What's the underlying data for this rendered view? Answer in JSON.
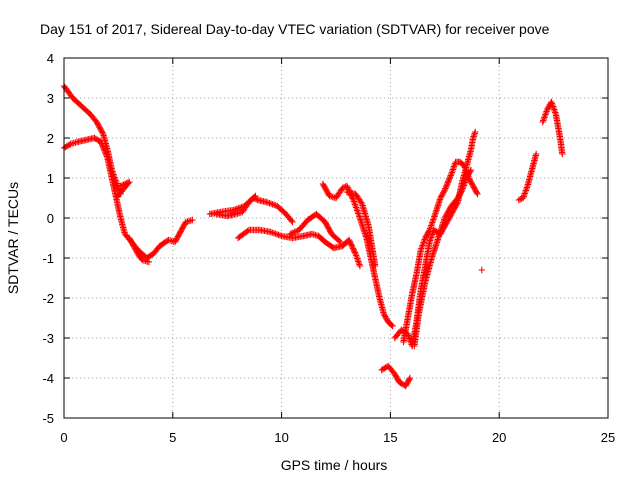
{
  "chart_data": {
    "type": "scatter",
    "title": "Day 151 of 2017, Sidereal Day-to-day VTEC variation (SDTVAR) for receiver pove",
    "xlabel": "GPS time / hours",
    "ylabel": "SDTVAR / TECUs",
    "xlim": [
      0,
      25
    ],
    "ylim": [
      -5,
      4
    ],
    "xticks": [
      "0",
      "5",
      "10",
      "15",
      "20",
      "25"
    ],
    "yticks": [
      "4",
      "3",
      "2",
      "1",
      "0",
      "-1",
      "-2",
      "-3",
      "-4",
      "-5"
    ],
    "grid": true,
    "legend": "none",
    "marker": "+",
    "color": "#ff0000",
    "segments": [
      {
        "points": [
          [
            0.0,
            3.3
          ],
          [
            0.4,
            3.0
          ],
          [
            0.8,
            2.8
          ],
          [
            1.2,
            2.6
          ],
          [
            1.5,
            2.4
          ],
          [
            1.8,
            2.1
          ],
          [
            2.0,
            1.7
          ],
          [
            2.2,
            1.2
          ],
          [
            2.4,
            0.9
          ],
          [
            2.6,
            0.6
          ]
        ]
      },
      {
        "points": [
          [
            0.0,
            1.75
          ],
          [
            0.3,
            1.85
          ],
          [
            0.6,
            1.9
          ],
          [
            1.0,
            1.95
          ],
          [
            1.4,
            2.0
          ],
          [
            1.7,
            1.9
          ],
          [
            2.0,
            1.5
          ],
          [
            2.2,
            1.0
          ],
          [
            2.4,
            0.5
          ],
          [
            2.6,
            0.0
          ],
          [
            2.8,
            -0.4
          ],
          [
            3.1,
            -0.6
          ],
          [
            3.4,
            -0.8
          ],
          [
            3.8,
            -1.0
          ],
          [
            4.1,
            -0.9
          ],
          [
            4.4,
            -0.7
          ],
          [
            4.8,
            -0.55
          ],
          [
            5.1,
            -0.6
          ],
          [
            5.3,
            -0.4
          ],
          [
            5.6,
            -0.1
          ],
          [
            5.9,
            -0.05
          ]
        ]
      },
      {
        "points": [
          [
            2.4,
            0.5
          ],
          [
            2.7,
            0.7
          ],
          [
            3.0,
            0.9
          ],
          [
            2.8,
            0.85
          ],
          [
            2.6,
            0.8
          ]
        ]
      },
      {
        "points": [
          [
            3.0,
            -0.5
          ],
          [
            3.4,
            -0.9
          ],
          [
            3.6,
            -1.05
          ],
          [
            3.9,
            -1.1
          ]
        ]
      },
      {
        "points": [
          [
            6.7,
            0.1
          ],
          [
            7.2,
            0.15
          ],
          [
            7.8,
            0.2
          ],
          [
            8.3,
            0.3
          ],
          [
            8.7,
            0.5
          ],
          [
            8.9,
            0.45
          ],
          [
            9.3,
            0.4
          ],
          [
            9.8,
            0.3
          ],
          [
            10.2,
            0.1
          ],
          [
            10.5,
            -0.1
          ]
        ]
      },
      {
        "points": [
          [
            7.0,
            0.1
          ],
          [
            7.5,
            0.05
          ],
          [
            7.9,
            0.1
          ],
          [
            8.2,
            0.15
          ],
          [
            8.5,
            0.4
          ],
          [
            8.8,
            0.55
          ]
        ]
      },
      {
        "points": [
          [
            8.0,
            -0.5
          ],
          [
            8.5,
            -0.3
          ],
          [
            9.0,
            -0.3
          ],
          [
            9.5,
            -0.35
          ],
          [
            10.0,
            -0.45
          ],
          [
            10.5,
            -0.5
          ],
          [
            11.0,
            -0.45
          ],
          [
            11.4,
            -0.4
          ],
          [
            11.7,
            -0.45
          ],
          [
            12.0,
            -0.6
          ],
          [
            12.4,
            -0.75
          ],
          [
            12.8,
            -0.7
          ],
          [
            13.1,
            -0.55
          ],
          [
            13.4,
            -0.9
          ],
          [
            13.6,
            -1.2
          ]
        ]
      },
      {
        "points": [
          [
            10.4,
            -0.4
          ],
          [
            10.8,
            -0.3
          ],
          [
            11.2,
            -0.05
          ],
          [
            11.6,
            0.1
          ],
          [
            12.0,
            -0.1
          ],
          [
            12.3,
            -0.4
          ],
          [
            12.7,
            -0.6
          ]
        ]
      },
      {
        "points": [
          [
            11.9,
            0.85
          ],
          [
            12.2,
            0.55
          ],
          [
            12.5,
            0.5
          ],
          [
            12.8,
            0.75
          ],
          [
            13.0,
            0.8
          ],
          [
            13.3,
            0.45
          ],
          [
            13.6,
            0.0
          ],
          [
            13.9,
            -0.5
          ],
          [
            14.1,
            -1.0
          ],
          [
            14.3,
            -1.5
          ],
          [
            14.5,
            -2.0
          ],
          [
            14.7,
            -2.4
          ],
          [
            14.9,
            -2.6
          ],
          [
            15.1,
            -2.7
          ]
        ]
      },
      {
        "points": [
          [
            13.0,
            0.65
          ],
          [
            13.4,
            0.6
          ],
          [
            13.7,
            0.35
          ],
          [
            14.0,
            -0.2
          ],
          [
            14.3,
            -1.2
          ]
        ]
      },
      {
        "points": [
          [
            14.6,
            -3.8
          ],
          [
            14.9,
            -3.7
          ],
          [
            15.2,
            -3.9
          ],
          [
            15.4,
            -4.1
          ],
          [
            15.7,
            -4.2
          ],
          [
            15.9,
            -4.0
          ]
        ]
      },
      {
        "points": [
          [
            15.2,
            -3.0
          ],
          [
            15.5,
            -2.8
          ],
          [
            15.8,
            -2.9
          ],
          [
            16.0,
            -3.2
          ],
          [
            16.2,
            -2.6
          ],
          [
            16.4,
            -1.8
          ],
          [
            16.6,
            -1.2
          ],
          [
            16.8,
            -0.6
          ],
          [
            17.0,
            -0.3
          ],
          [
            17.3,
            -0.4
          ],
          [
            17.5,
            -0.2
          ],
          [
            17.8,
            0.1
          ],
          [
            18.1,
            0.4
          ],
          [
            18.3,
            0.9
          ],
          [
            18.5,
            1.3
          ],
          [
            18.7,
            1.7
          ],
          [
            18.8,
            2.0
          ],
          [
            18.9,
            2.15
          ]
        ]
      },
      {
        "points": [
          [
            15.6,
            -3.1
          ],
          [
            15.8,
            -2.5
          ],
          [
            16.0,
            -1.9
          ],
          [
            16.2,
            -1.4
          ],
          [
            16.4,
            -0.8
          ],
          [
            16.6,
            -0.5
          ],
          [
            16.8,
            -0.3
          ],
          [
            17.0,
            0.0
          ],
          [
            17.3,
            0.5
          ],
          [
            17.5,
            0.7
          ],
          [
            17.8,
            1.1
          ],
          [
            18.0,
            1.4
          ],
          [
            18.2,
            1.4
          ],
          [
            18.4,
            1.3
          ],
          [
            18.6,
            1.0
          ],
          [
            18.8,
            0.8
          ],
          [
            19.0,
            0.6
          ]
        ]
      },
      {
        "points": [
          [
            16.1,
            -3.2
          ],
          [
            16.3,
            -2.4
          ],
          [
            16.6,
            -1.6
          ],
          [
            16.9,
            -1.0
          ],
          [
            17.2,
            -0.5
          ],
          [
            17.5,
            0.0
          ],
          [
            17.8,
            0.3
          ],
          [
            18.1,
            0.5
          ],
          [
            18.3,
            0.7
          ],
          [
            18.5,
            1.0
          ],
          [
            18.7,
            1.2
          ]
        ]
      },
      {
        "points": [
          [
            19.2,
            -1.3
          ]
        ]
      },
      {
        "points": [
          [
            20.9,
            0.45
          ],
          [
            21.1,
            0.5
          ],
          [
            21.3,
            0.8
          ],
          [
            21.5,
            1.2
          ],
          [
            21.7,
            1.6
          ]
        ]
      },
      {
        "points": [
          [
            22.0,
            2.4
          ],
          [
            22.2,
            2.7
          ],
          [
            22.4,
            2.9
          ],
          [
            22.6,
            2.6
          ],
          [
            22.8,
            2.0
          ],
          [
            22.9,
            1.6
          ]
        ]
      }
    ]
  }
}
